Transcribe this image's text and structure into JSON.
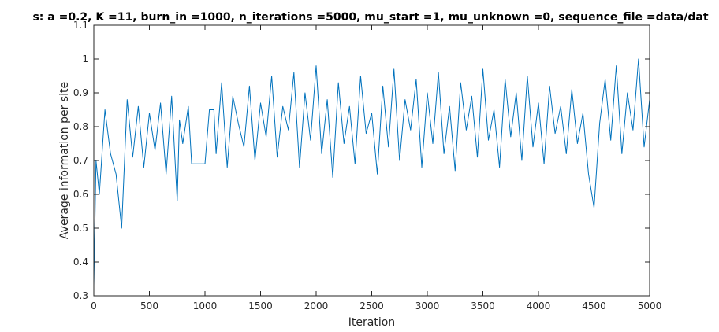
{
  "chart_data": {
    "type": "line",
    "title": "s: a =0.2, K =11, burn_in =1000, n_iterations =5000, mu_start =1, mu_unknown =0, sequence_file =data/dat",
    "xlabel": "Iteration",
    "ylabel": "Average information per site",
    "xlim": [
      0,
      5000
    ],
    "ylim": [
      0.3,
      1.1
    ],
    "x_ticks": [
      "0",
      "500",
      "1000",
      "1500",
      "2000",
      "2500",
      "3000",
      "3500",
      "4000",
      "4500",
      "5000"
    ],
    "y_ticks": [
      "0.3",
      "0.4",
      "0.5",
      "0.6",
      "0.7",
      "0.8",
      "0.9",
      "1",
      "1.1"
    ],
    "grid": false,
    "legend": "none",
    "series_color": "#0072BD",
    "series": [
      {
        "x": [
          0,
          20,
          50,
          100,
          150,
          200,
          250,
          300,
          350,
          400,
          450,
          500,
          550,
          600,
          650,
          700,
          750,
          770,
          800,
          850,
          880,
          900,
          950,
          1000,
          1040,
          1060,
          1080,
          1100,
          1150,
          1200,
          1250,
          1300,
          1350,
          1400,
          1450,
          1500,
          1550,
          1600,
          1650,
          1700,
          1750,
          1800,
          1850,
          1900,
          1950,
          2000,
          2050,
          2100,
          2150,
          2200,
          2250,
          2300,
          2350,
          2400,
          2450,
          2500,
          2550,
          2600,
          2650,
          2700,
          2750,
          2800,
          2850,
          2900,
          2950,
          3000,
          3050,
          3100,
          3150,
          3200,
          3250,
          3300,
          3350,
          3400,
          3450,
          3500,
          3550,
          3600,
          3650,
          3700,
          3750,
          3800,
          3850,
          3900,
          3950,
          4000,
          4050,
          4100,
          4150,
          4200,
          4250,
          4300,
          4350,
          4400,
          4450,
          4500,
          4550,
          4600,
          4650,
          4700,
          4750,
          4800,
          4850,
          4900,
          4950,
          5000
        ],
        "y": [
          0.33,
          0.7,
          0.6,
          0.85,
          0.72,
          0.66,
          0.5,
          0.88,
          0.71,
          0.86,
          0.68,
          0.84,
          0.73,
          0.87,
          0.66,
          0.89,
          0.58,
          0.82,
          0.75,
          0.86,
          0.69,
          0.69,
          0.69,
          0.69,
          0.85,
          0.85,
          0.85,
          0.72,
          0.93,
          0.68,
          0.89,
          0.81,
          0.74,
          0.92,
          0.7,
          0.87,
          0.77,
          0.95,
          0.71,
          0.86,
          0.79,
          0.96,
          0.68,
          0.9,
          0.76,
          0.98,
          0.72,
          0.88,
          0.65,
          0.93,
          0.75,
          0.86,
          0.69,
          0.95,
          0.78,
          0.84,
          0.66,
          0.92,
          0.74,
          0.97,
          0.7,
          0.88,
          0.79,
          0.94,
          0.68,
          0.9,
          0.75,
          0.96,
          0.72,
          0.86,
          0.67,
          0.93,
          0.79,
          0.89,
          0.71,
          0.97,
          0.76,
          0.85,
          0.68,
          0.94,
          0.77,
          0.9,
          0.7,
          0.95,
          0.74,
          0.87,
          0.69,
          0.92,
          0.78,
          0.86,
          0.72,
          0.91,
          0.75,
          0.84,
          0.66,
          0.56,
          0.81,
          0.94,
          0.76,
          0.98,
          0.72,
          0.9,
          0.79,
          1.0,
          0.74,
          0.88
        ]
      }
    ]
  }
}
